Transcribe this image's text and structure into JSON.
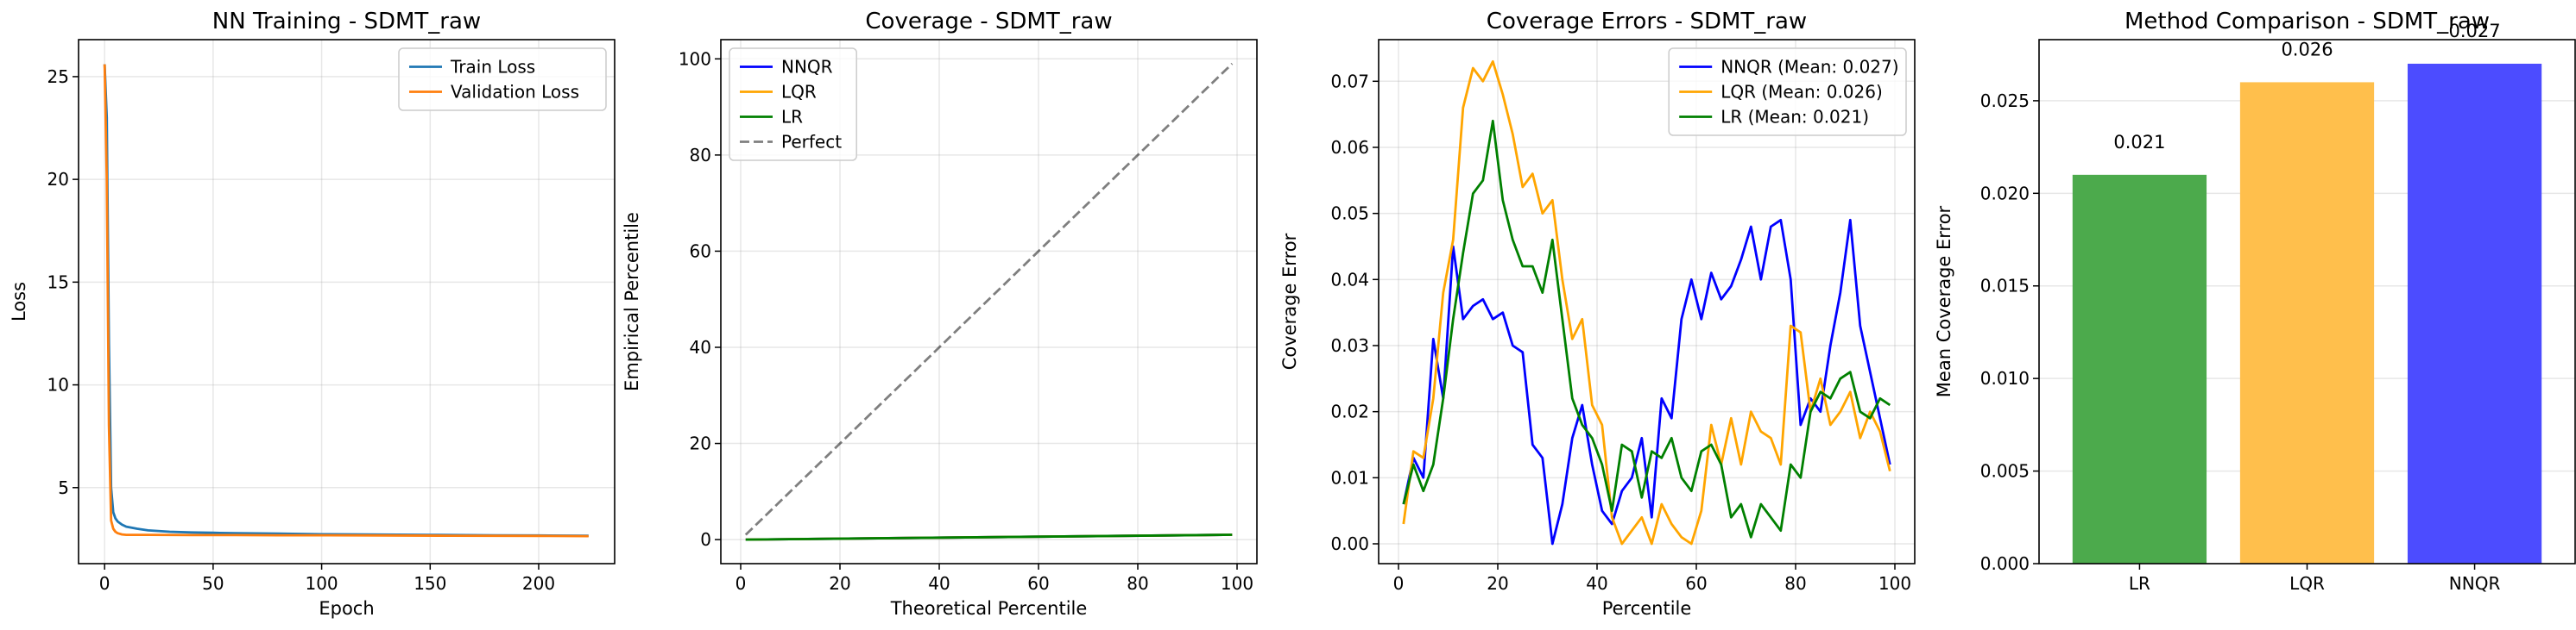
{
  "chart_data": [
    {
      "type": "line",
      "title": "NN Training - SDMT_raw",
      "xlabel": "Epoch",
      "ylabel": "Loss",
      "xlim": [
        -12,
        235
      ],
      "ylim": [
        1.3,
        26.8
      ],
      "xticks": [
        0,
        50,
        100,
        150,
        200
      ],
      "yticks": [
        5,
        10,
        15,
        20,
        25
      ],
      "grid": true,
      "legend": "top-right",
      "series": [
        {
          "name": "Train Loss",
          "color": "#1f77b4",
          "x": [
            0,
            1,
            2,
            3,
            4,
            5,
            6,
            8,
            10,
            15,
            20,
            30,
            40,
            50,
            60,
            80,
            100,
            120,
            150,
            180,
            200,
            223
          ],
          "y": [
            25.6,
            23.0,
            12.0,
            5.0,
            3.8,
            3.5,
            3.35,
            3.2,
            3.1,
            3.0,
            2.92,
            2.85,
            2.82,
            2.8,
            2.78,
            2.76,
            2.73,
            2.72,
            2.7,
            2.68,
            2.67,
            2.66
          ]
        },
        {
          "name": "Validation Loss",
          "color": "#ff7f0e",
          "x": [
            0,
            1,
            2,
            3,
            4,
            5,
            6,
            8,
            10,
            20,
            40,
            60,
            80,
            100,
            130,
            160,
            200,
            223
          ],
          "y": [
            25.6,
            20.0,
            8.0,
            3.4,
            3.0,
            2.85,
            2.78,
            2.72,
            2.7,
            2.7,
            2.69,
            2.69,
            2.68,
            2.68,
            2.67,
            2.66,
            2.65,
            2.64
          ]
        }
      ]
    },
    {
      "type": "line",
      "title": "Coverage - SDMT_raw",
      "xlabel": "Theoretical Percentile",
      "ylabel": "Empirical Percentile",
      "xlim": [
        -4,
        104
      ],
      "ylim": [
        -5,
        104
      ],
      "xticks": [
        0,
        20,
        40,
        60,
        80,
        100
      ],
      "yticks": [
        0,
        20,
        40,
        60,
        80,
        100
      ],
      "grid": true,
      "legend": "top-left",
      "series": [
        {
          "name": "NNQR",
          "color": "#0000ff",
          "x": [
            1,
            99
          ],
          "y": [
            0.0,
            1.0
          ]
        },
        {
          "name": "LQR",
          "color": "#ffa500",
          "x": [
            1,
            99
          ],
          "y": [
            0.0,
            1.0
          ]
        },
        {
          "name": "LR",
          "color": "#008000",
          "x": [
            1,
            99
          ],
          "y": [
            0.0,
            1.0
          ]
        },
        {
          "name": "Perfect",
          "color": "#000000",
          "dashed": true,
          "x": [
            1,
            99
          ],
          "y": [
            1,
            99
          ]
        }
      ]
    },
    {
      "type": "line",
      "title": "Coverage Errors - SDMT_raw",
      "xlabel": "Percentile",
      "ylabel": "Coverage Error",
      "xlim": [
        -4,
        104
      ],
      "ylim": [
        -0.003,
        0.0763
      ],
      "xticks": [
        0,
        20,
        40,
        60,
        80,
        100
      ],
      "yticks": [
        "0.00",
        "0.01",
        "0.02",
        "0.03",
        "0.04",
        "0.05",
        "0.06",
        "0.07"
      ],
      "grid": true,
      "legend": "top-right",
      "series": [
        {
          "name": "NNQR (Mean: 0.027)",
          "color": "#0000ff",
          "x": [
            1,
            3,
            5,
            7,
            9,
            11,
            13,
            15,
            17,
            19,
            21,
            23,
            25,
            27,
            29,
            31,
            33,
            35,
            37,
            39,
            41,
            43,
            45,
            47,
            49,
            51,
            53,
            55,
            57,
            59,
            61,
            63,
            65,
            67,
            69,
            71,
            73,
            75,
            77,
            79,
            81,
            83,
            85,
            87,
            89,
            91,
            93,
            95,
            97,
            99
          ],
          "y": [
            0.006,
            0.013,
            0.01,
            0.031,
            0.022,
            0.045,
            0.034,
            0.036,
            0.037,
            0.034,
            0.035,
            0.03,
            0.029,
            0.015,
            0.013,
            0.0,
            0.006,
            0.016,
            0.021,
            0.012,
            0.005,
            0.003,
            0.008,
            0.01,
            0.016,
            0.004,
            0.022,
            0.019,
            0.034,
            0.04,
            0.034,
            0.041,
            0.037,
            0.039,
            0.043,
            0.048,
            0.04,
            0.048,
            0.049,
            0.04,
            0.018,
            0.022,
            0.02,
            0.03,
            0.038,
            0.049,
            0.033,
            0.026,
            0.019,
            0.012
          ]
        },
        {
          "name": "LQR (Mean: 0.026)",
          "color": "#ffa500",
          "x": [
            1,
            3,
            5,
            7,
            9,
            11,
            13,
            15,
            17,
            19,
            21,
            23,
            25,
            27,
            29,
            31,
            33,
            35,
            37,
            39,
            41,
            43,
            45,
            47,
            49,
            51,
            53,
            55,
            57,
            59,
            61,
            63,
            65,
            67,
            69,
            71,
            73,
            75,
            77,
            79,
            81,
            83,
            85,
            87,
            89,
            91,
            93,
            95,
            97,
            99
          ],
          "y": [
            0.003,
            0.014,
            0.013,
            0.022,
            0.038,
            0.046,
            0.066,
            0.072,
            0.07,
            0.073,
            0.068,
            0.062,
            0.054,
            0.056,
            0.05,
            0.052,
            0.04,
            0.031,
            0.034,
            0.021,
            0.018,
            0.004,
            0.0,
            0.002,
            0.004,
            0.0,
            0.006,
            0.003,
            0.001,
            0.0,
            0.005,
            0.018,
            0.012,
            0.019,
            0.012,
            0.02,
            0.017,
            0.016,
            0.012,
            0.033,
            0.032,
            0.02,
            0.025,
            0.018,
            0.02,
            0.023,
            0.016,
            0.02,
            0.017,
            0.011
          ]
        },
        {
          "name": "LR (Mean: 0.021)",
          "color": "#008000",
          "x": [
            1,
            3,
            5,
            7,
            9,
            11,
            13,
            15,
            17,
            19,
            21,
            23,
            25,
            27,
            29,
            31,
            33,
            35,
            37,
            39,
            41,
            43,
            45,
            47,
            49,
            51,
            53,
            55,
            57,
            59,
            61,
            63,
            65,
            67,
            69,
            71,
            73,
            75,
            77,
            79,
            81,
            83,
            85,
            87,
            89,
            91,
            93,
            95,
            97,
            99
          ],
          "y": [
            0.006,
            0.012,
            0.008,
            0.012,
            0.022,
            0.034,
            0.044,
            0.053,
            0.055,
            0.064,
            0.052,
            0.046,
            0.042,
            0.042,
            0.038,
            0.046,
            0.034,
            0.022,
            0.018,
            0.016,
            0.012,
            0.005,
            0.015,
            0.014,
            0.007,
            0.014,
            0.013,
            0.016,
            0.01,
            0.008,
            0.014,
            0.015,
            0.012,
            0.004,
            0.006,
            0.001,
            0.006,
            0.004,
            0.002,
            0.012,
            0.01,
            0.02,
            0.023,
            0.022,
            0.025,
            0.026,
            0.02,
            0.019,
            0.022,
            0.021
          ]
        }
      ]
    },
    {
      "type": "bar",
      "title": "Method Comparison - SDMT_raw",
      "xlabel": "",
      "ylabel": "Mean Coverage Error",
      "categories": [
        "LR",
        "LQR",
        "NNQR"
      ],
      "values": [
        0.021,
        0.026,
        0.027
      ],
      "value_labels": [
        "0.021",
        "0.026",
        "0.027"
      ],
      "colors": [
        "#4caa4c",
        "#ffbf4c",
        "#4c4cff"
      ],
      "ylim": [
        0,
        0.0283
      ],
      "yticks": [
        "0.000",
        "0.005",
        "0.010",
        "0.015",
        "0.020",
        "0.025"
      ],
      "grid": true
    }
  ]
}
